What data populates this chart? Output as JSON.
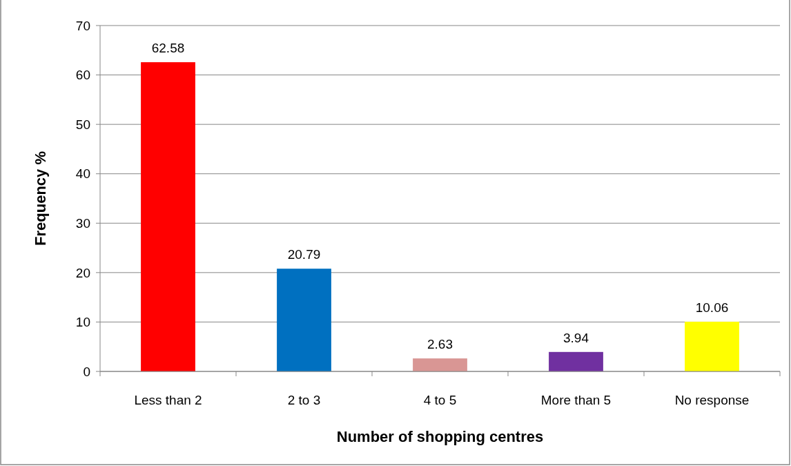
{
  "chart_data": {
    "type": "bar",
    "xlabel": "Number of shopping centres",
    "ylabel": "Frequency %",
    "categories": [
      "Less than 2",
      "2 to 3",
      "4 to 5",
      "More than 5",
      "No response"
    ],
    "values": [
      62.58,
      20.79,
      2.63,
      3.94,
      10.06
    ],
    "colors": [
      "#ff0000",
      "#0070c0",
      "#d99694",
      "#7030a0",
      "#ffff00"
    ],
    "ylim": [
      0,
      70
    ],
    "yticks": [
      0,
      10,
      20,
      30,
      40,
      50,
      60,
      70
    ],
    "grid": "y",
    "data_labels": true
  }
}
